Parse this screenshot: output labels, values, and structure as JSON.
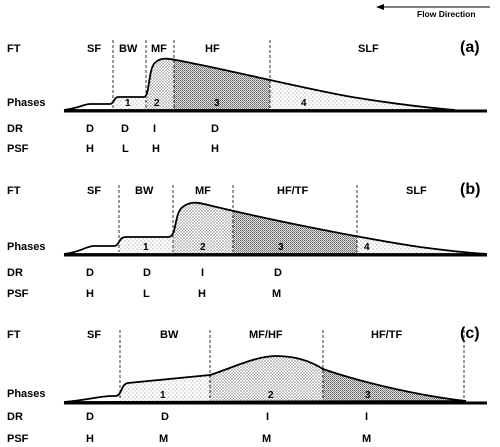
{
  "flow_direction": "Flow Direction",
  "row_labels": {
    "ft": "FT",
    "phases": "Phases",
    "dr": "DR",
    "psf": "PSF"
  },
  "panels": [
    {
      "id": "a",
      "panel_label": "(a)",
      "zones": [
        "SF",
        "BW",
        "MF",
        "HF",
        "SLF"
      ],
      "phases": [
        "1",
        "2",
        "3",
        "4"
      ],
      "dr": [
        "D",
        "D",
        "I",
        "D"
      ],
      "psf": [
        "H",
        "L",
        "H",
        "H"
      ]
    },
    {
      "id": "b",
      "panel_label": "(b)",
      "zones": [
        "SF",
        "BW",
        "MF",
        "HF/TF",
        "SLF"
      ],
      "phases": [
        "1",
        "2",
        "3",
        "4"
      ],
      "dr": [
        "D",
        "D",
        "I",
        "D"
      ],
      "psf": [
        "H",
        "L",
        "H",
        "M"
      ]
    },
    {
      "id": "c",
      "panel_label": "(c)",
      "zones": [
        "SF",
        "BW",
        "MF/HF",
        "HF/TF"
      ],
      "phases": [
        "1",
        "2",
        "3"
      ],
      "dr": [
        "D",
        "D",
        "I",
        "I"
      ],
      "psf": [
        "H",
        "M",
        "M",
        "M"
      ]
    }
  ]
}
